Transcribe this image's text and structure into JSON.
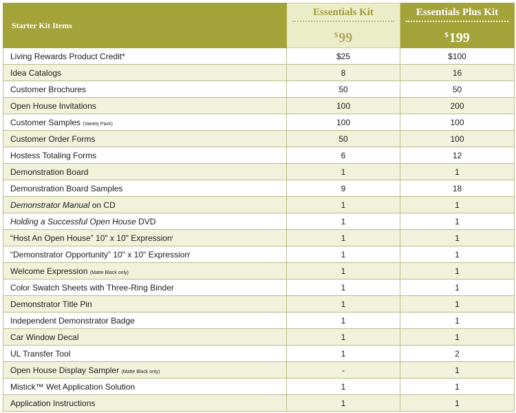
{
  "header": {
    "title": "Starter Kit Items",
    "essentials": {
      "name": "Essentials Kit",
      "currency": "$",
      "price": "99"
    },
    "plus": {
      "name": "Essentials Plus Kit",
      "currency": "$",
      "price": "199"
    }
  },
  "rows": [
    {
      "label": "Living Rewards Product Credit*",
      "essentials": "$25",
      "plus": "$100"
    },
    {
      "label": "Idea Catalogs",
      "essentials": "8",
      "plus": "16"
    },
    {
      "label": "Customer Brochures",
      "essentials": "50",
      "plus": "50"
    },
    {
      "label": "Open House Invitations",
      "essentials": "100",
      "plus": "200"
    },
    {
      "label": "Customer Samples",
      "note": "(Variety Pack)",
      "essentials": "100",
      "plus": "100"
    },
    {
      "label": "Customer Order Forms",
      "essentials": "50",
      "plus": "100"
    },
    {
      "label": "Hostess Totaling Forms",
      "essentials": "6",
      "plus": "12"
    },
    {
      "label": "Demonstration Board",
      "essentials": "1",
      "plus": "1"
    },
    {
      "label": "Demonstration Board Samples",
      "essentials": "9",
      "plus": "18"
    },
    {
      "label_italic": "Demonstrator Manual",
      "label_rest": " on CD",
      "essentials": "1",
      "plus": "1"
    },
    {
      "label_italic": "Holding a Successful Open House",
      "label_rest": " DVD",
      "essentials": "1",
      "plus": "1"
    },
    {
      "label": "“Host An Open House” 10\" x 10\" Expression",
      "mark": "r",
      "essentials": "1",
      "plus": "1"
    },
    {
      "label": "“Demonstrator Opportunity” 10\" x 10\" Expression",
      "mark": "r",
      "essentials": "1",
      "plus": "1"
    },
    {
      "label": "Welcome Expression",
      "note": "(Matte Black only)",
      "essentials": "1",
      "plus": "1"
    },
    {
      "label": "Color Swatch Sheets with Three-Ring Binder",
      "essentials": "1",
      "plus": "1"
    },
    {
      "label": "Demonstrator Title Pin",
      "essentials": "1",
      "plus": "1"
    },
    {
      "label": "Independent Demonstrator Badge",
      "essentials": "1",
      "plus": "1"
    },
    {
      "label": "Car Window Decal",
      "essentials": "1",
      "plus": "1"
    },
    {
      "label": "UL Transfer Tool",
      "essentials": "1",
      "plus": "2"
    },
    {
      "label": "Open House Display Sampler",
      "note": "(Matte Black only)",
      "essentials": "-",
      "plus": "1"
    },
    {
      "label": "Mistick™ Wet Application Solution",
      "essentials": "1",
      "plus": "1"
    },
    {
      "label": "Application Instructions",
      "essentials": "1",
      "plus": "1"
    }
  ]
}
